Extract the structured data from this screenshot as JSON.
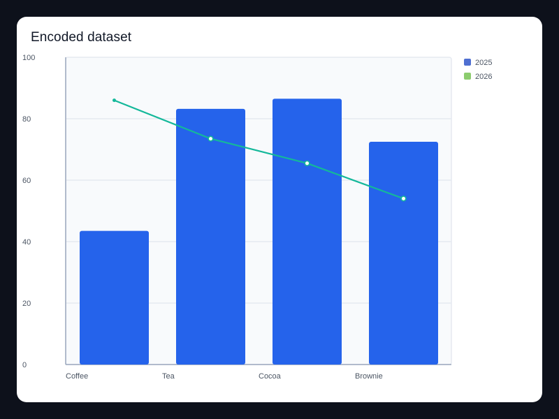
{
  "title": "Encoded dataset",
  "chart_data": {
    "type": "bar",
    "categories": [
      "Coffee",
      "Tea",
      "Cocoa",
      "Brownie"
    ],
    "series": [
      {
        "name": "2025",
        "type": "bar",
        "color": "#2563eb",
        "values": [
          43.5,
          83.2,
          86.5,
          72.5
        ]
      },
      {
        "name": "2026",
        "type": "line",
        "color": "#14b89a",
        "values": [
          86.0,
          73.5,
          65.5,
          54.0
        ]
      }
    ],
    "legend": [
      {
        "label": "2025",
        "color": "#4f6fd1"
      },
      {
        "label": "2026",
        "color": "#8ccc6e"
      }
    ],
    "ylim": [
      0,
      100
    ],
    "yticks": [
      0,
      20,
      40,
      60,
      80,
      100
    ],
    "grid": true,
    "legend_position": "top-right",
    "colors": {
      "plot_background": "#f8fafc",
      "gridline": "#e5e9f0",
      "axis": "#9ca8bd"
    }
  }
}
